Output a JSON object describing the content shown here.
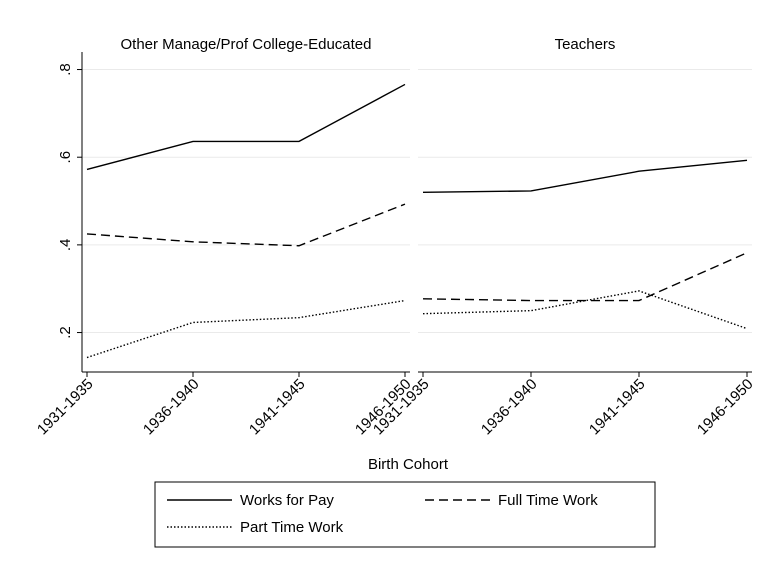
{
  "chart_data": {
    "type": "line",
    "xlabel": "Birth Cohort",
    "categories": [
      "1931-1935",
      "1936-1940",
      "1941-1945",
      "1946-1950"
    ],
    "ylim": [
      0.11,
      0.84
    ],
    "yticks": [
      {
        "value": 0.2,
        "label": ".2"
      },
      {
        "value": 0.4,
        "label": ".4"
      },
      {
        "value": 0.6,
        "label": ".6"
      },
      {
        "value": 0.8,
        "label": ".8"
      }
    ],
    "grid": true,
    "series": [
      {
        "name": "Works for Pay",
        "color": "#000000",
        "dash": "solid"
      },
      {
        "name": "Full Time Work",
        "color": "#000000",
        "dash": "dashed"
      },
      {
        "name": "Part Time Work",
        "color": "#000000",
        "dash": "dotted"
      }
    ],
    "panels": [
      {
        "title": "Other Manage/Prof College-Educated",
        "values": [
          [
            0.572,
            0.636,
            0.636,
            0.766
          ],
          [
            0.425,
            0.407,
            0.398,
            0.493
          ],
          [
            0.143,
            0.223,
            0.234,
            0.273
          ]
        ]
      },
      {
        "title": "Teachers",
        "values": [
          [
            0.52,
            0.523,
            0.568,
            0.593
          ],
          [
            0.277,
            0.273,
            0.273,
            0.382
          ],
          [
            0.243,
            0.25,
            0.295,
            0.209
          ]
        ]
      }
    ]
  }
}
